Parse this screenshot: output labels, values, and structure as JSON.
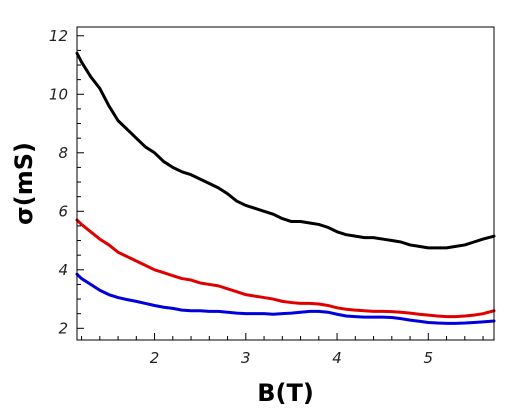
{
  "chart_data": {
    "type": "line",
    "xlabel": "B(T)",
    "ylabel": "σ(mS)",
    "xlim": [
      1.15,
      5.72
    ],
    "ylim": [
      1.6,
      12.3
    ],
    "xticks": [
      2,
      3,
      4,
      5
    ],
    "yticks": [
      2,
      4,
      6,
      8,
      10,
      12
    ],
    "grid": false,
    "legend": "none",
    "series": [
      {
        "color": "#000000",
        "x": [
          1.15,
          1.2,
          1.3,
          1.4,
          1.5,
          1.6,
          1.7,
          1.8,
          1.9,
          2.0,
          2.1,
          2.2,
          2.3,
          2.4,
          2.5,
          2.6,
          2.7,
          2.8,
          2.9,
          3.0,
          3.1,
          3.2,
          3.3,
          3.4,
          3.5,
          3.6,
          3.7,
          3.8,
          3.9,
          4.0,
          4.1,
          4.2,
          4.3,
          4.4,
          4.5,
          4.6,
          4.7,
          4.8,
          4.9,
          5.0,
          5.1,
          5.2,
          5.3,
          5.4,
          5.5,
          5.6,
          5.72
        ],
        "values": [
          11.4,
          11.1,
          10.6,
          10.2,
          9.6,
          9.1,
          8.8,
          8.5,
          8.2,
          8.0,
          7.7,
          7.5,
          7.35,
          7.25,
          7.1,
          6.95,
          6.8,
          6.6,
          6.35,
          6.2,
          6.1,
          6.0,
          5.9,
          5.75,
          5.65,
          5.65,
          5.6,
          5.55,
          5.45,
          5.3,
          5.2,
          5.15,
          5.1,
          5.1,
          5.05,
          5.0,
          4.95,
          4.85,
          4.8,
          4.75,
          4.75,
          4.75,
          4.8,
          4.85,
          4.95,
          5.05,
          5.15
        ]
      },
      {
        "color": "#e00000",
        "x": [
          1.15,
          1.2,
          1.3,
          1.4,
          1.5,
          1.6,
          1.7,
          1.8,
          1.9,
          2.0,
          2.1,
          2.2,
          2.3,
          2.4,
          2.5,
          2.6,
          2.7,
          2.8,
          2.9,
          3.0,
          3.1,
          3.2,
          3.3,
          3.4,
          3.5,
          3.6,
          3.7,
          3.8,
          3.9,
          4.0,
          4.1,
          4.2,
          4.3,
          4.4,
          4.5,
          4.6,
          4.7,
          4.8,
          4.9,
          5.0,
          5.1,
          5.2,
          5.3,
          5.4,
          5.5,
          5.6,
          5.72
        ],
        "values": [
          5.7,
          5.55,
          5.3,
          5.05,
          4.85,
          4.6,
          4.45,
          4.3,
          4.15,
          4.0,
          3.9,
          3.8,
          3.7,
          3.65,
          3.55,
          3.5,
          3.45,
          3.35,
          3.25,
          3.15,
          3.1,
          3.05,
          3.0,
          2.92,
          2.88,
          2.85,
          2.85,
          2.83,
          2.78,
          2.7,
          2.65,
          2.62,
          2.6,
          2.58,
          2.58,
          2.57,
          2.55,
          2.52,
          2.48,
          2.45,
          2.42,
          2.4,
          2.4,
          2.42,
          2.45,
          2.5,
          2.6
        ]
      },
      {
        "color": "#0000dd",
        "x": [
          1.15,
          1.2,
          1.3,
          1.4,
          1.5,
          1.6,
          1.7,
          1.8,
          1.9,
          2.0,
          2.1,
          2.2,
          2.3,
          2.4,
          2.5,
          2.6,
          2.7,
          2.8,
          2.9,
          3.0,
          3.1,
          3.2,
          3.3,
          3.4,
          3.5,
          3.6,
          3.7,
          3.8,
          3.9,
          4.0,
          4.1,
          4.2,
          4.3,
          4.4,
          4.5,
          4.6,
          4.7,
          4.8,
          4.9,
          5.0,
          5.1,
          5.2,
          5.3,
          5.4,
          5.5,
          5.6,
          5.72
        ],
        "values": [
          3.85,
          3.7,
          3.5,
          3.3,
          3.15,
          3.05,
          2.98,
          2.92,
          2.85,
          2.78,
          2.72,
          2.68,
          2.62,
          2.6,
          2.6,
          2.58,
          2.58,
          2.55,
          2.52,
          2.5,
          2.5,
          2.5,
          2.48,
          2.5,
          2.52,
          2.55,
          2.58,
          2.58,
          2.55,
          2.48,
          2.42,
          2.4,
          2.38,
          2.38,
          2.38,
          2.37,
          2.33,
          2.28,
          2.24,
          2.2,
          2.18,
          2.17,
          2.17,
          2.18,
          2.2,
          2.22,
          2.25
        ]
      }
    ]
  }
}
